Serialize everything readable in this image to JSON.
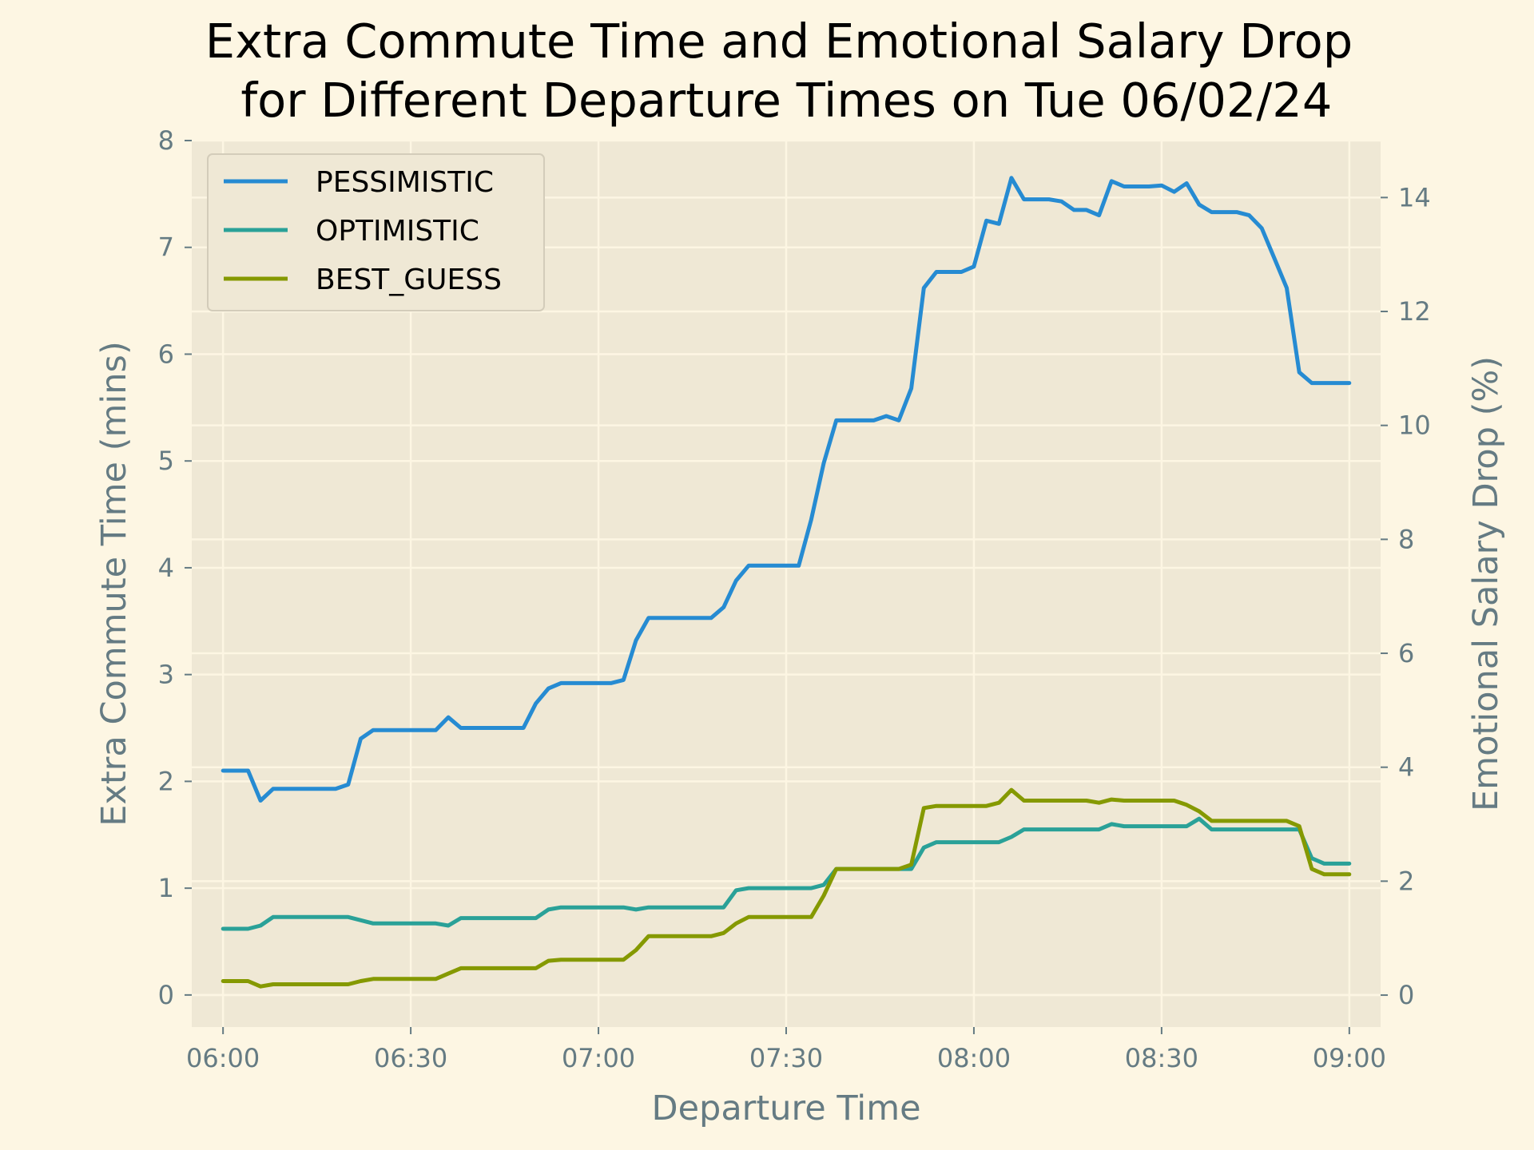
{
  "colors": {
    "figure_background": "#fdf6e3",
    "plot_background": "#efe8d5",
    "grid": "#fdf6e3",
    "axis_text": "#657b83",
    "pessimistic": "#268bd2",
    "optimistic": "#2aa198",
    "best_guess": "#859900"
  },
  "chart_data": {
    "type": "line",
    "title_line1": "Extra Commute Time and Emotional Salary Drop",
    "title_line2": " for Different Departure Times on Tue 06/02/24",
    "xlabel": "Departure Time",
    "ylabel_left": "Extra Commute Time (mins)",
    "ylabel_right": "Emotional Salary Drop (%)",
    "xlim": [
      "05:55",
      "09:05"
    ],
    "ylim_left": [
      -0.3,
      8
    ],
    "ylim_right": [
      -0.56,
      15
    ],
    "x_ticks": [
      "06:00",
      "06:30",
      "07:00",
      "07:30",
      "08:00",
      "08:30",
      "09:00"
    ],
    "y_ticks_left": [
      0,
      1,
      2,
      3,
      4,
      5,
      6,
      7,
      8
    ],
    "y_ticks_right": [
      0,
      2,
      4,
      6,
      8,
      10,
      12,
      14
    ],
    "grid": true,
    "legend_position": "top-left",
    "x": [
      "06:00",
      "06:02",
      "06:04",
      "06:06",
      "06:08",
      "06:10",
      "06:12",
      "06:14",
      "06:16",
      "06:18",
      "06:20",
      "06:22",
      "06:24",
      "06:26",
      "06:28",
      "06:30",
      "06:32",
      "06:34",
      "06:36",
      "06:38",
      "06:40",
      "06:42",
      "06:44",
      "06:46",
      "06:48",
      "06:50",
      "06:52",
      "06:54",
      "06:56",
      "06:58",
      "07:00",
      "07:02",
      "07:04",
      "07:06",
      "07:08",
      "07:10",
      "07:12",
      "07:14",
      "07:16",
      "07:18",
      "07:20",
      "07:22",
      "07:24",
      "07:26",
      "07:28",
      "07:30",
      "07:32",
      "07:34",
      "07:36",
      "07:38",
      "07:40",
      "07:42",
      "07:44",
      "07:46",
      "07:48",
      "07:50",
      "07:52",
      "07:54",
      "07:56",
      "07:58",
      "08:00",
      "08:02",
      "08:04",
      "08:06",
      "08:08",
      "08:10",
      "08:12",
      "08:14",
      "08:16",
      "08:18",
      "08:20",
      "08:22",
      "08:24",
      "08:26",
      "08:28",
      "08:30",
      "08:32",
      "08:34",
      "08:36",
      "08:38",
      "08:40",
      "08:42",
      "08:44",
      "08:46",
      "08:48",
      "08:50",
      "08:52",
      "08:54",
      "08:56",
      "08:58",
      "09:00"
    ],
    "series": [
      {
        "name": "PESSIMISTIC",
        "values": [
          2.1,
          2.1,
          2.1,
          1.82,
          1.93,
          1.93,
          1.93,
          1.93,
          1.93,
          1.93,
          1.97,
          2.4,
          2.48,
          2.48,
          2.48,
          2.48,
          2.48,
          2.48,
          2.6,
          2.5,
          2.5,
          2.5,
          2.5,
          2.5,
          2.5,
          2.73,
          2.87,
          2.92,
          2.92,
          2.92,
          2.92,
          2.92,
          2.95,
          3.32,
          3.53,
          3.53,
          3.53,
          3.53,
          3.53,
          3.53,
          3.63,
          3.88,
          4.02,
          4.02,
          4.02,
          4.02,
          4.02,
          4.45,
          4.98,
          5.38,
          5.38,
          5.38,
          5.38,
          5.42,
          5.38,
          5.68,
          6.62,
          6.77,
          6.77,
          6.77,
          6.82,
          7.25,
          7.22,
          7.65,
          7.45,
          7.45,
          7.45,
          7.43,
          7.35,
          7.35,
          7.3,
          7.62,
          7.57,
          7.57,
          7.57,
          7.58,
          7.52,
          7.6,
          7.4,
          7.33,
          7.33,
          7.33,
          7.3,
          7.18,
          6.9,
          6.62,
          5.83,
          5.73,
          5.73,
          5.73,
          5.73
        ]
      },
      {
        "name": "OPTIMISTIC",
        "values": [
          0.62,
          0.62,
          0.62,
          0.65,
          0.73,
          0.73,
          0.73,
          0.73,
          0.73,
          0.73,
          0.73,
          0.7,
          0.67,
          0.67,
          0.67,
          0.67,
          0.67,
          0.67,
          0.65,
          0.72,
          0.72,
          0.72,
          0.72,
          0.72,
          0.72,
          0.72,
          0.8,
          0.82,
          0.82,
          0.82,
          0.82,
          0.82,
          0.82,
          0.8,
          0.82,
          0.82,
          0.82,
          0.82,
          0.82,
          0.82,
          0.82,
          0.98,
          1.0,
          1.0,
          1.0,
          1.0,
          1.0,
          1.0,
          1.03,
          1.18,
          1.18,
          1.18,
          1.18,
          1.18,
          1.18,
          1.18,
          1.38,
          1.43,
          1.43,
          1.43,
          1.43,
          1.43,
          1.43,
          1.48,
          1.55,
          1.55,
          1.55,
          1.55,
          1.55,
          1.55,
          1.55,
          1.6,
          1.58,
          1.58,
          1.58,
          1.58,
          1.58,
          1.58,
          1.65,
          1.55,
          1.55,
          1.55,
          1.55,
          1.55,
          1.55,
          1.55,
          1.55,
          1.28,
          1.23,
          1.23,
          1.23
        ]
      },
      {
        "name": "BEST_GUESS",
        "values": [
          0.13,
          0.13,
          0.13,
          0.08,
          0.1,
          0.1,
          0.1,
          0.1,
          0.1,
          0.1,
          0.1,
          0.13,
          0.15,
          0.15,
          0.15,
          0.15,
          0.15,
          0.15,
          0.2,
          0.25,
          0.25,
          0.25,
          0.25,
          0.25,
          0.25,
          0.25,
          0.32,
          0.33,
          0.33,
          0.33,
          0.33,
          0.33,
          0.33,
          0.42,
          0.55,
          0.55,
          0.55,
          0.55,
          0.55,
          0.55,
          0.58,
          0.67,
          0.73,
          0.73,
          0.73,
          0.73,
          0.73,
          0.73,
          0.93,
          1.18,
          1.18,
          1.18,
          1.18,
          1.18,
          1.18,
          1.22,
          1.75,
          1.77,
          1.77,
          1.77,
          1.77,
          1.77,
          1.8,
          1.92,
          1.82,
          1.82,
          1.82,
          1.82,
          1.82,
          1.82,
          1.8,
          1.83,
          1.82,
          1.82,
          1.82,
          1.82,
          1.82,
          1.78,
          1.72,
          1.63,
          1.63,
          1.63,
          1.63,
          1.63,
          1.63,
          1.63,
          1.58,
          1.18,
          1.13,
          1.13,
          1.13
        ]
      }
    ]
  }
}
